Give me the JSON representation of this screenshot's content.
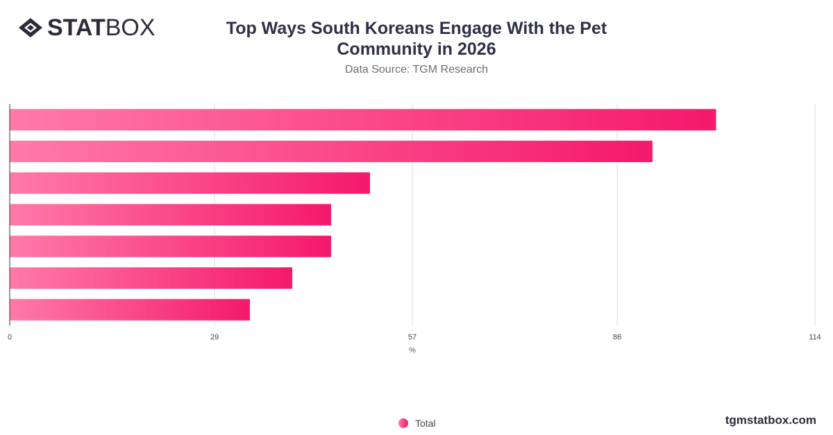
{
  "brand": {
    "logo_bold": "STAT",
    "logo_light": "BOX",
    "site": "tgmstatbox.com"
  },
  "header": {
    "title": "Top Ways South Koreans Engage With the Pet Community in 2026",
    "subtitle": "Data Source: TGM Research"
  },
  "colors": {
    "bar_start": "#ff7aa8",
    "bar_end": "#f5196b",
    "grid": "#dddddd",
    "axis": "#333333"
  },
  "chart_data": {
    "type": "bar",
    "orientation": "horizontal",
    "title": "Top Ways South Koreans Engage With the Pet Community in 2026",
    "subtitle": "Data Source: TGM Research",
    "xlabel": "%",
    "ylabel": "",
    "xlim": [
      0,
      114
    ],
    "xticks": [
      0,
      29,
      57,
      86,
      114
    ],
    "categories": [
      "",
      "",
      "",
      "",
      "",
      "",
      ""
    ],
    "series": [
      {
        "name": "Total",
        "values": [
          100,
          91,
          51,
          45.5,
          45.5,
          40,
          34
        ]
      }
    ],
    "grid": true,
    "legend": "bottom-center"
  }
}
